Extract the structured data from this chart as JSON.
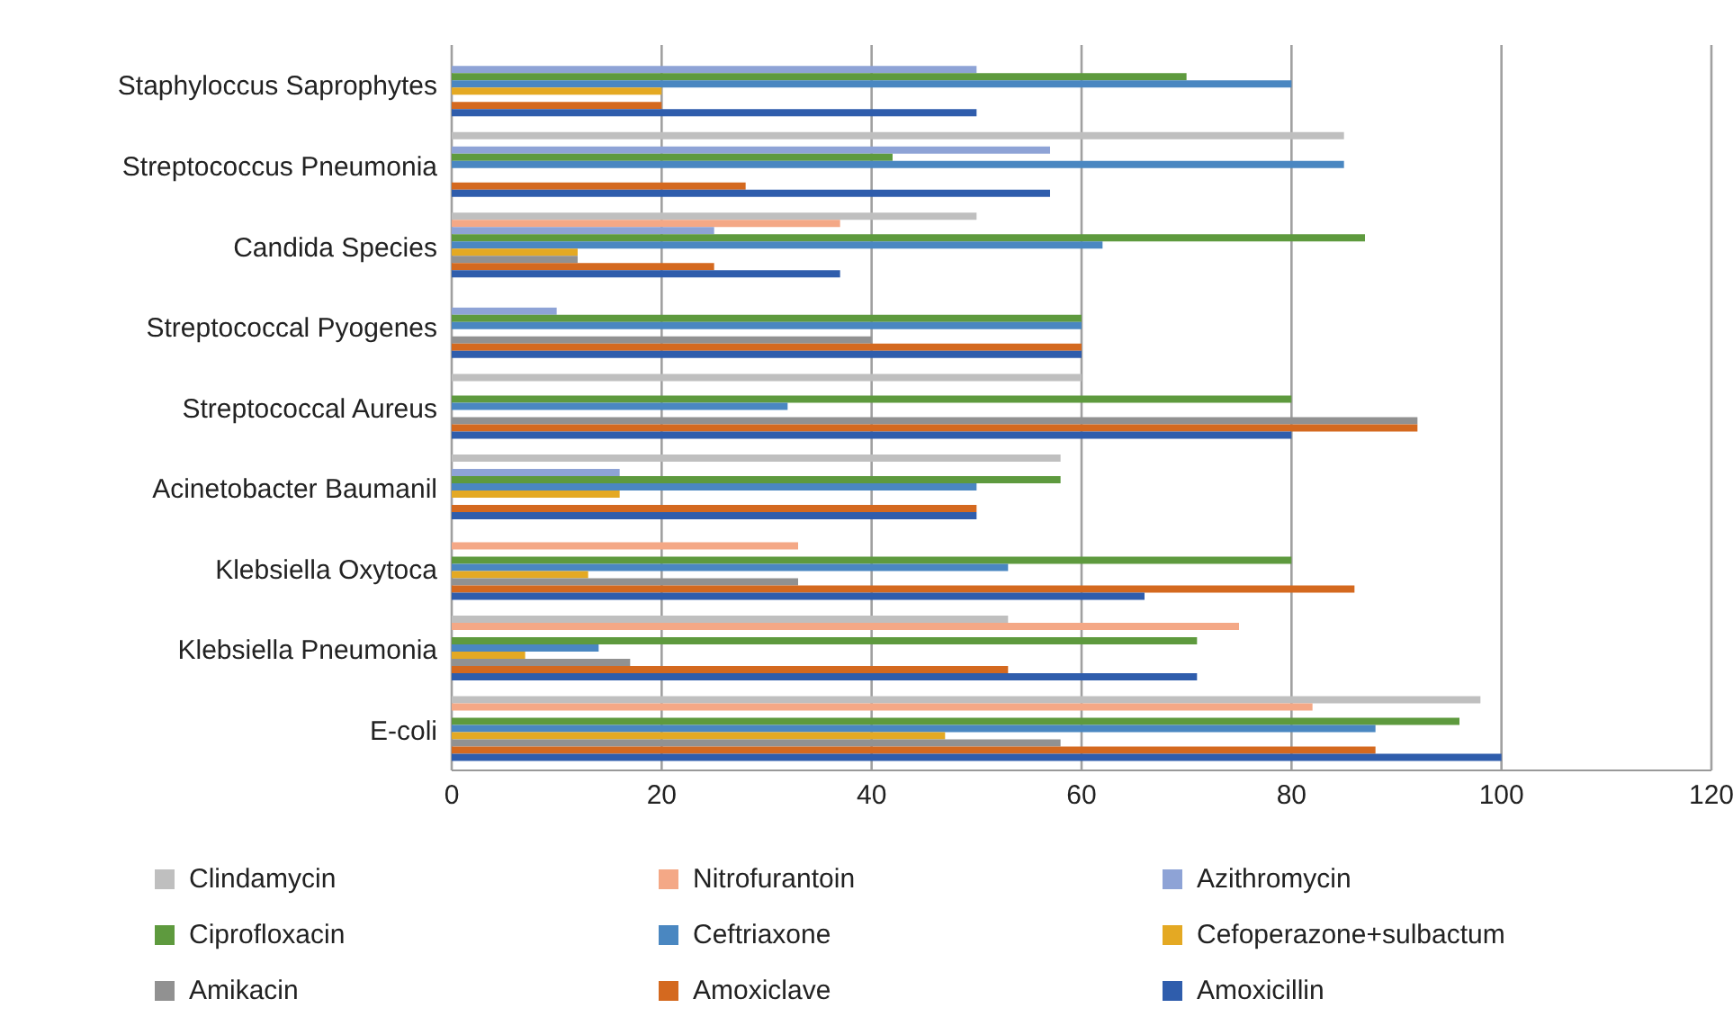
{
  "chart_data": {
    "type": "bar",
    "orientation": "horizontal",
    "categories": [
      "Staphyloccus Saprophytes",
      "Streptococcus Pneumonia",
      "Candida Species",
      "Streptococcal Pyogenes",
      "Streptococcal Aureus",
      "Acinetobacter Baumanil",
      "Klebsiella Oxytoca",
      "Klebsiella Pneumonia",
      "E-coli"
    ],
    "series": [
      {
        "name": "Clindamycin",
        "color": "#bfbfbf",
        "values": [
          null,
          85,
          50,
          null,
          60,
          58,
          null,
          53,
          98
        ]
      },
      {
        "name": "Nitrofurantoin",
        "color": "#f4a886",
        "values": [
          null,
          null,
          37,
          null,
          null,
          null,
          33,
          75,
          82
        ]
      },
      {
        "name": "Azithromycin",
        "color": "#8ea3d6",
        "values": [
          50,
          57,
          25,
          10,
          null,
          16,
          null,
          null,
          null
        ]
      },
      {
        "name": "Ciprofloxacin",
        "color": "#5e9a3e",
        "values": [
          70,
          42,
          87,
          60,
          80,
          58,
          80,
          71,
          96
        ]
      },
      {
        "name": "Ceftriaxone",
        "color": "#4a87c1",
        "values": [
          80,
          85,
          62,
          60,
          32,
          50,
          53,
          14,
          88
        ]
      },
      {
        "name": "Cefoperazone+sulbactum",
        "color": "#e4a923",
        "values": [
          20,
          null,
          12,
          null,
          null,
          16,
          13,
          7,
          47
        ]
      },
      {
        "name": "Amikacin",
        "color": "#919191",
        "values": [
          null,
          null,
          12,
          40,
          92,
          null,
          33,
          17,
          58
        ]
      },
      {
        "name": "Amoxiclave",
        "color": "#d4691f",
        "values": [
          20,
          28,
          25,
          60,
          92,
          50,
          86,
          53,
          88
        ]
      },
      {
        "name": "Amoxicillin",
        "color": "#2f5dac",
        "values": [
          50,
          57,
          37,
          60,
          80,
          50,
          66,
          71,
          100
        ]
      }
    ],
    "xlim": [
      0,
      120
    ],
    "xticks": [
      0,
      20,
      40,
      60,
      80,
      100,
      120
    ],
    "grid": "x",
    "legend": "bottom"
  }
}
